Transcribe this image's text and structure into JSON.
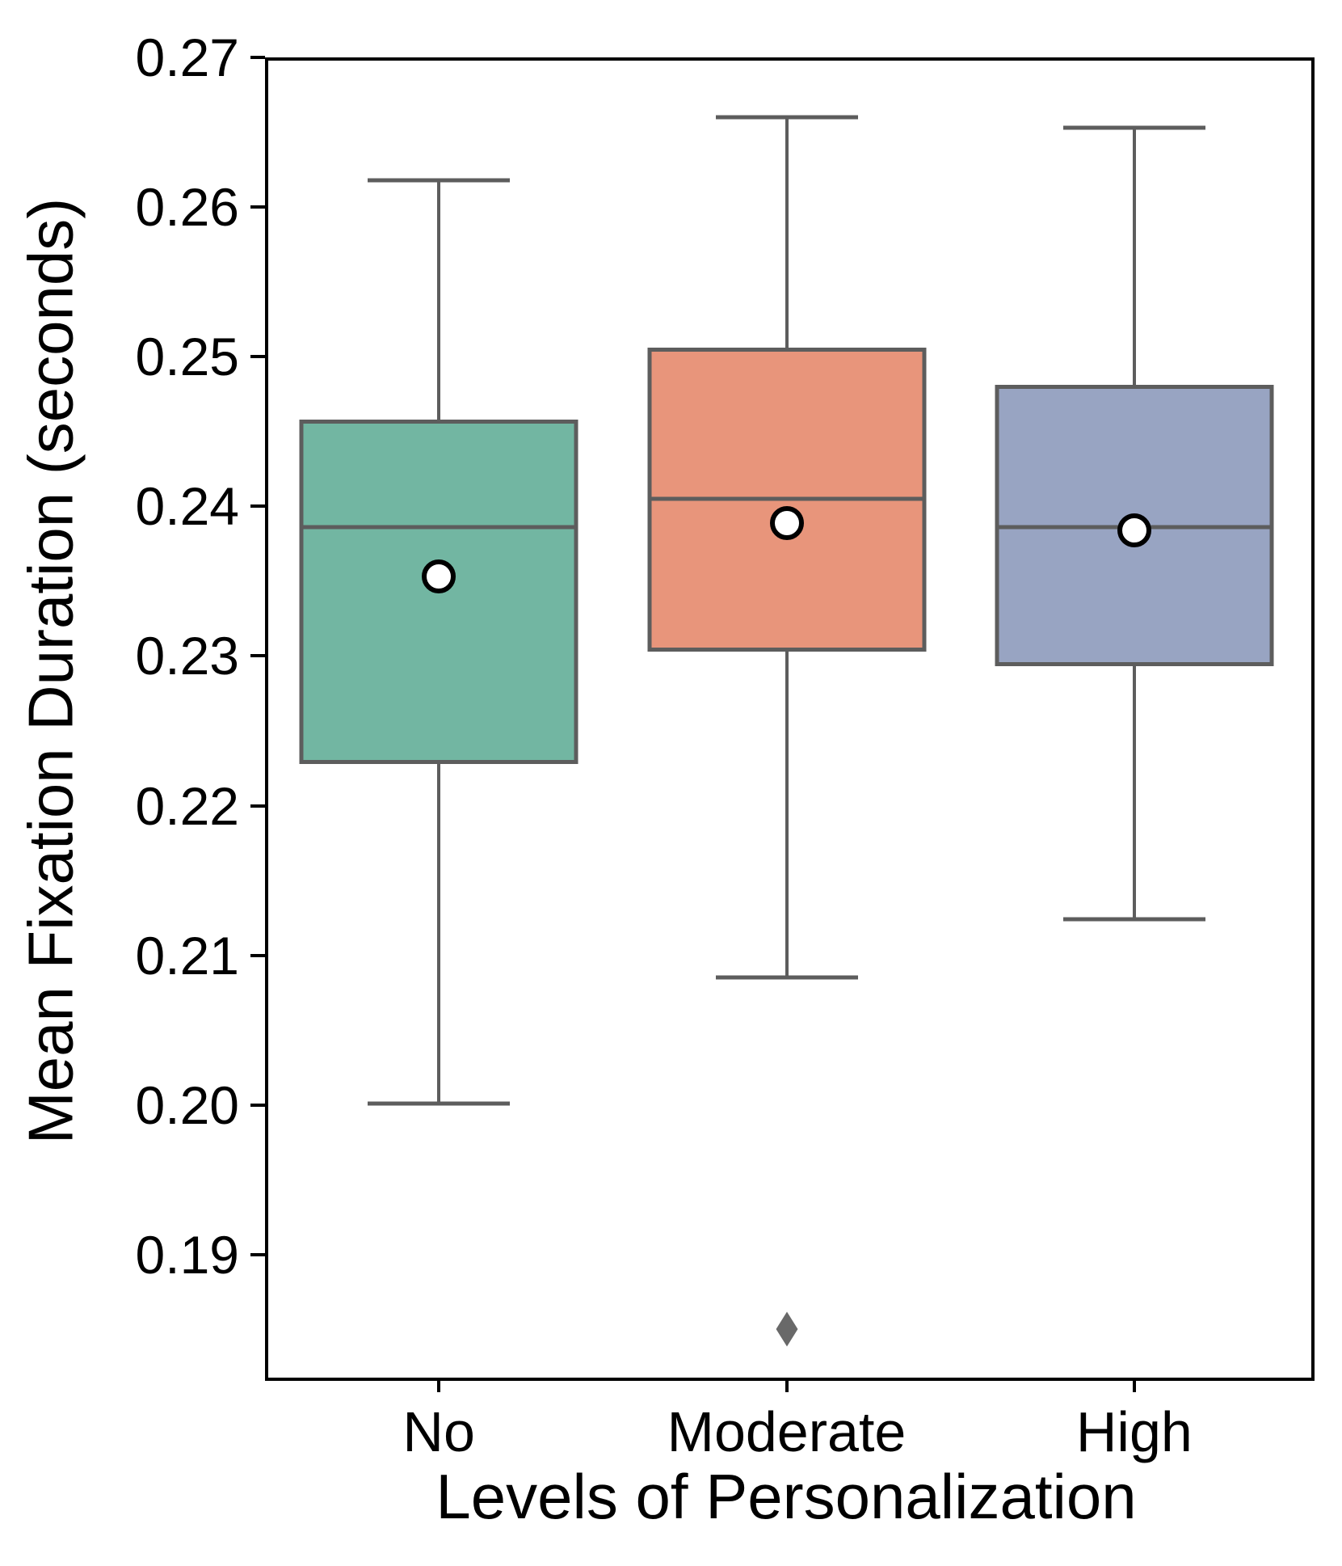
{
  "chart_data": {
    "type": "box",
    "title": "",
    "xlabel": "Levels of Personalization",
    "ylabel": "Mean Fixation Duration (seconds)",
    "categories": [
      "No",
      "Moderate",
      "High"
    ],
    "ylim": [
      0.182,
      0.27
    ],
    "grid": false,
    "legend_position": "none",
    "yticks": [
      {
        "value": 0.27,
        "label": "0.27"
      },
      {
        "value": 0.26,
        "label": "0.26"
      },
      {
        "value": 0.25,
        "label": "0.25"
      },
      {
        "value": 0.24,
        "label": "0.24"
      },
      {
        "value": 0.23,
        "label": "0.23"
      },
      {
        "value": 0.22,
        "label": "0.22"
      },
      {
        "value": 0.21,
        "label": "0.21"
      },
      {
        "value": 0.2,
        "label": "0.20"
      },
      {
        "value": 0.19,
        "label": "0.19"
      }
    ],
    "series": [
      {
        "name": "No",
        "color": "#72b6a2",
        "whisker_low": 0.2001,
        "q1": 0.2228,
        "median": 0.2386,
        "q3": 0.2458,
        "whisker_high": 0.2618,
        "mean": 0.2353,
        "outliers": []
      },
      {
        "name": "Moderate",
        "color": "#e8957b",
        "whisker_low": 0.2085,
        "q1": 0.2303,
        "median": 0.2405,
        "q3": 0.2506,
        "whisker_high": 0.266,
        "mean": 0.2389,
        "outliers": [
          0.185
        ]
      },
      {
        "name": "High",
        "color": "#98a4c2",
        "whisker_low": 0.2124,
        "q1": 0.2293,
        "median": 0.2386,
        "q3": 0.2481,
        "whisker_high": 0.2653,
        "mean": 0.2384,
        "outliers": []
      }
    ],
    "style": {
      "edge_color": "#5d5d5d",
      "mean_marker_fill": "#ffffff",
      "mean_marker_edge": "#000000",
      "outlier_color": "#696969",
      "spine_color": "#000000"
    }
  }
}
